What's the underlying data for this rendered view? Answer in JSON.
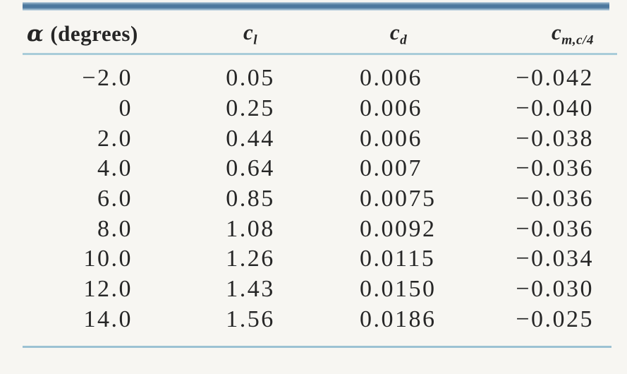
{
  "colors": {
    "page_background": "#f7f6f2",
    "top_rule_blue": "#4d789e",
    "header_underline_blue": "#a9ccd9",
    "bottom_rule_blue": "#9cc2d3",
    "text": "#262626"
  },
  "table": {
    "header": {
      "alpha": {
        "symbol": "α",
        "rest": "(degrees)"
      },
      "cl": {
        "base": "c",
        "sub": "l"
      },
      "cd": {
        "base": "c",
        "sub": "d"
      },
      "cm": {
        "base": "c",
        "sub": "m,c/4"
      }
    },
    "rows": [
      {
        "alpha": "−2.0",
        "cl": "0.05",
        "cd": "0.006",
        "cm": "−0.042"
      },
      {
        "alpha": "0",
        "cl": "0.25",
        "cd": "0.006",
        "cm": "−0.040"
      },
      {
        "alpha": "2.0",
        "cl": "0.44",
        "cd": "0.006",
        "cm": "−0.038"
      },
      {
        "alpha": "4.0",
        "cl": "0.64",
        "cd": "0.007",
        "cm": "−0.036"
      },
      {
        "alpha": "6.0",
        "cl": "0.85",
        "cd": "0.0075",
        "cm": "−0.036"
      },
      {
        "alpha": "8.0",
        "cl": "1.08",
        "cd": "0.0092",
        "cm": "−0.036"
      },
      {
        "alpha": "10.0",
        "cl": "1.26",
        "cd": "0.0115",
        "cm": "−0.034"
      },
      {
        "alpha": "12.0",
        "cl": "1.43",
        "cd": "0.0150",
        "cm": "−0.030"
      },
      {
        "alpha": "14.0",
        "cl": "1.56",
        "cd": "0.0186",
        "cm": "−0.025"
      }
    ]
  },
  "chart_data": {
    "type": "table",
    "title": "",
    "columns": [
      "alpha_degrees",
      "c_l",
      "c_d",
      "c_m_c/4"
    ],
    "rows": [
      [
        -2.0,
        0.05,
        0.006,
        -0.042
      ],
      [
        0,
        0.25,
        0.006,
        -0.04
      ],
      [
        2.0,
        0.44,
        0.006,
        -0.038
      ],
      [
        4.0,
        0.64,
        0.007,
        -0.036
      ],
      [
        6.0,
        0.85,
        0.0075,
        -0.036
      ],
      [
        8.0,
        1.08,
        0.0092,
        -0.036
      ],
      [
        10.0,
        1.26,
        0.0115,
        -0.034
      ],
      [
        12.0,
        1.43,
        0.015,
        -0.03
      ],
      [
        14.0,
        1.56,
        0.0186,
        -0.025
      ]
    ]
  }
}
